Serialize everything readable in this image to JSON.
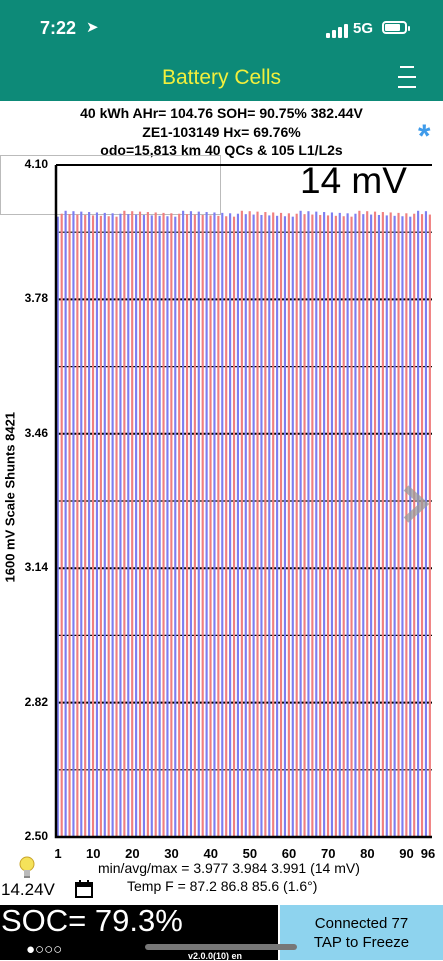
{
  "status_bar": {
    "time": "7:22",
    "network": "5G"
  },
  "nav": {
    "title": "Battery Cells"
  },
  "header": {
    "line1": "40 kWh  AHr= 104.76  SOH= 90.75%   382.44V",
    "line2": "ZE1-103149   Hx= 69.76%",
    "line3": "odo=15,813 km 40 QCs & 105 L1/L2s"
  },
  "range_label": "14 mV",
  "chart_data": {
    "type": "bar",
    "ylabel": "1600 mV Scale   Shunts 8421",
    "ylim": [
      2.5,
      4.1
    ],
    "y_ticks": [
      "4.10",
      "3.78",
      "3.46",
      "3.14",
      "2.82",
      "2.50"
    ],
    "x_ticks": [
      "1",
      "10",
      "20",
      "30",
      "40",
      "50",
      "60",
      "70",
      "80",
      "90",
      "96"
    ],
    "cell_count": 96,
    "min_voltage": 3.977,
    "max_voltage": 3.991,
    "colors": {
      "odd": "#7d7df0",
      "even": "#f07f7f"
    }
  },
  "stats": {
    "line": "min/avg/max = 3.977 3.984 3.991  (14 mV)",
    "temp": "Temp F = 87.2  86.8  85.6  (1.6°)"
  },
  "aux_voltage": "14.24V",
  "soc": {
    "text": "SOC= 79.3%",
    "dots": "●○○○"
  },
  "connect": {
    "line1": "Connected 77",
    "line2": "TAP to Freeze"
  },
  "version": "v2.0.0(10) en"
}
